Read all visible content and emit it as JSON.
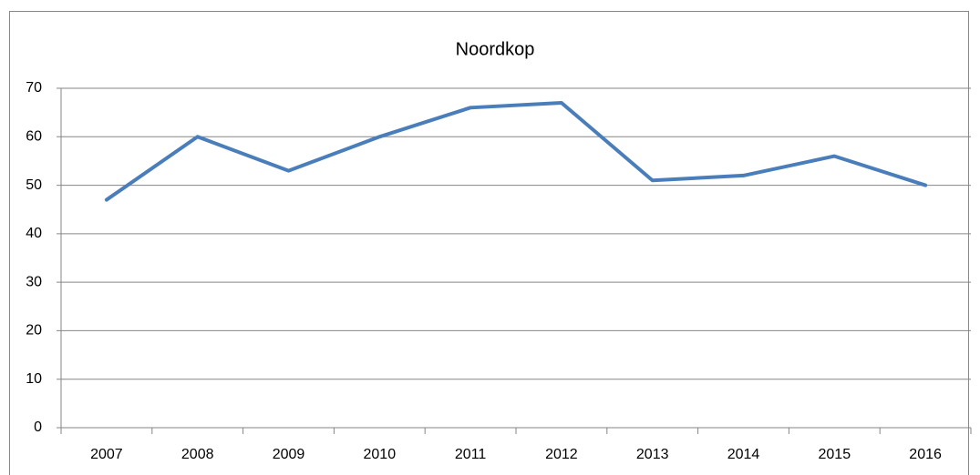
{
  "chart_data": {
    "type": "line",
    "title": "Noordkop",
    "categories": [
      "2007",
      "2008",
      "2009",
      "2010",
      "2011",
      "2012",
      "2013",
      "2014",
      "2015",
      "2016"
    ],
    "values": [
      47,
      60,
      53,
      60,
      66,
      67,
      51,
      52,
      56,
      50
    ],
    "color": "#4a7ebb",
    "ylim": [
      0,
      70
    ],
    "yticks": [
      0,
      10,
      20,
      30,
      40,
      50,
      60,
      70
    ],
    "grid": true
  }
}
